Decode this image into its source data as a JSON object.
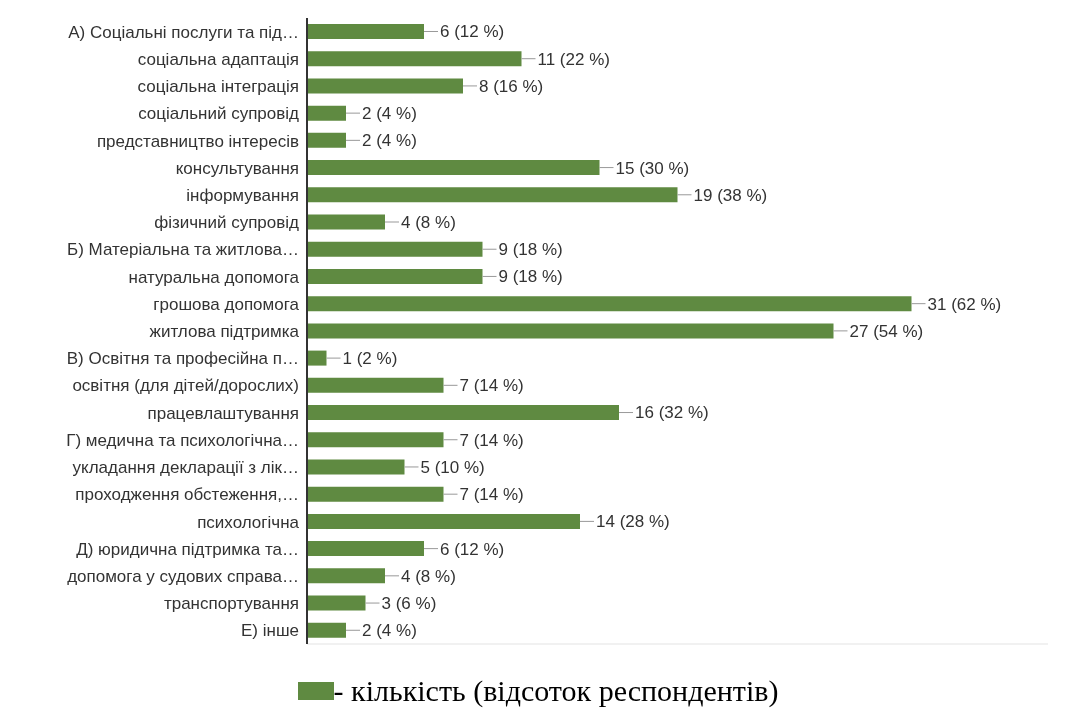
{
  "chart_data": {
    "type": "bar",
    "orientation": "horizontal",
    "categories": [
      "А) Соціальні послуги та під…",
      "соціальна адаптація",
      "соціальна інтеграція",
      "соціальний супровід",
      "представництво інтересів",
      "консультування",
      "інформування",
      "фізичний супровід",
      "Б) Матеріальна та житлова…",
      "натуральна допомога",
      "грошова допомога",
      "житлова підтримка",
      "В) Освітня та професійна п…",
      "освітня (для дітей/дорослих)",
      "працевлаштування",
      "Г) медична та психологічна…",
      "укладання декларації з лік…",
      "проходження обстеження,…",
      "психологічна",
      "Д) юридична підтримка та…",
      "допомога у судових справа…",
      "транспортування",
      "Е) інше"
    ],
    "series": [
      {
        "name": "- кількість (відсоток респондентів)",
        "color": "#5f8a41",
        "values": [
          6,
          11,
          8,
          2,
          2,
          15,
          19,
          4,
          9,
          9,
          31,
          27,
          1,
          7,
          16,
          7,
          5,
          7,
          14,
          6,
          4,
          3,
          2
        ],
        "value_labels": [
          "6 (12 %)",
          "11 (22 %)",
          "8 (16 %)",
          "2 (4 %)",
          "2 (4 %)",
          "15 (30 %)",
          "19 (38 %)",
          "4 (8 %)",
          "9 (18 %)",
          "9 (18 %)",
          "31 (62 %)",
          "27 (54 %)",
          "1 (2 %)",
          "7 (14 %)",
          "16 (32 %)",
          "7 (14 %)",
          "5 (10 %)",
          "7 (14 %)",
          "14 (28 %)",
          "6 (12 %)",
          "4 (8 %)",
          "3 (6 %)",
          "2 (4 %)"
        ]
      }
    ],
    "xlim": [
      0,
      38
    ],
    "legend": "bottom",
    "tick_labels": "y"
  }
}
